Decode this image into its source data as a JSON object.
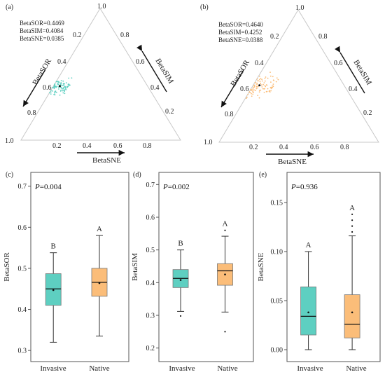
{
  "colors": {
    "invasive": "#5ecfc1",
    "native": "#fbbd79",
    "line": "#333333"
  },
  "ternary_axis_labels": {
    "sor": "BetaSOR",
    "sim": "BetaSIM",
    "sne": "BetaSNE"
  },
  "ternary_ticks": {
    "top": "1.0",
    "left_bottom": "1.0",
    "left": [
      "0.2",
      "0.4",
      "0.6",
      "0.8"
    ],
    "right": [
      "0.8",
      "0.6",
      "0.4",
      "0.2"
    ],
    "bottom": [
      "0.2",
      "0.4",
      "0.6",
      "0.8"
    ]
  },
  "chart_data": [
    {
      "type": "scatter",
      "panel": "(a)",
      "subtype": "ternary",
      "stats": [
        "BetaSOR=0.4469",
        "BetaSIM=0.4084",
        "BetaSNE=0.0385"
      ],
      "mean": {
        "sim": 0.41,
        "sne": 0.04
      },
      "cluster": {
        "sim_range": [
          0.32,
          0.49
        ],
        "sne_range": [
          0.0,
          0.1
        ]
      },
      "color": "invasive"
    },
    {
      "type": "scatter",
      "panel": "(b)",
      "subtype": "ternary",
      "stats": [
        "BetaSOR=0.4640",
        "BetaSIM=0.4252",
        "BetaSNE=0.0388"
      ],
      "mean": {
        "sim": 0.43,
        "sne": 0.04
      },
      "cluster": {
        "sim_range": [
          0.3,
          0.55
        ],
        "sne_range": [
          0.0,
          0.14
        ]
      },
      "color": "native"
    },
    {
      "type": "box",
      "panel": "(c)",
      "ylabel": "BetaSOR",
      "ylim": [
        0.29,
        0.72
      ],
      "yticks": [
        "0.3",
        "0.4",
        "0.5",
        "0.6",
        "0.7"
      ],
      "yticks_values": [
        0.3,
        0.4,
        0.5,
        0.6,
        0.7
      ],
      "p_label": "P",
      "p_value": "=0.004",
      "categories": [
        "Invasive",
        "Native"
      ],
      "boxes": [
        {
          "min": 0.32,
          "q1": 0.41,
          "median": 0.45,
          "q3": 0.487,
          "max": 0.538,
          "mean": 0.447,
          "letter": "B",
          "outliers": []
        },
        {
          "min": 0.335,
          "q1": 0.432,
          "median": 0.466,
          "q3": 0.5,
          "max": 0.58,
          "mean": 0.464,
          "letter": "A",
          "outliers": []
        }
      ]
    },
    {
      "type": "box",
      "panel": "(d)",
      "ylabel": "BetaSIM",
      "ylim": [
        0.18,
        0.72
      ],
      "yticks": [
        "0.2",
        "0.3",
        "0.4",
        "0.5",
        "0.6",
        "0.7"
      ],
      "yticks_values": [
        0.2,
        0.3,
        0.4,
        0.5,
        0.6,
        0.7
      ],
      "p_label": "P",
      "p_value": "=0.002",
      "categories": [
        "Invasive",
        "Native"
      ],
      "boxes": [
        {
          "min": 0.312,
          "q1": 0.385,
          "median": 0.413,
          "q3": 0.44,
          "max": 0.5,
          "mean": 0.408,
          "letter": "B",
          "outliers": [
            0.298
          ]
        },
        {
          "min": 0.31,
          "q1": 0.392,
          "median": 0.436,
          "q3": 0.458,
          "max": 0.542,
          "mean": 0.425,
          "letter": "A",
          "outliers": [
            0.56,
            0.25
          ]
        }
      ]
    },
    {
      "type": "box",
      "panel": "(e)",
      "ylabel": "BetaSNE",
      "ylim": [
        -0.005,
        0.175
      ],
      "yticks": [
        "0.00",
        "0.05",
        "0.10",
        "0.15"
      ],
      "yticks_values": [
        0.0,
        0.05,
        0.1,
        0.15
      ],
      "p_label": "P",
      "p_value": "=0.936",
      "categories": [
        "Invasive",
        "Native"
      ],
      "boxes": [
        {
          "min": 0.0,
          "q1": 0.015,
          "median": 0.034,
          "q3": 0.064,
          "max": 0.1,
          "mean": 0.038,
          "letter": "A",
          "outliers": []
        },
        {
          "min": 0.0,
          "q1": 0.012,
          "median": 0.026,
          "q3": 0.056,
          "max": 0.116,
          "mean": 0.038,
          "letter": "A",
          "outliers": [
            0.12,
            0.126,
            0.132,
            0.138
          ]
        }
      ]
    }
  ]
}
